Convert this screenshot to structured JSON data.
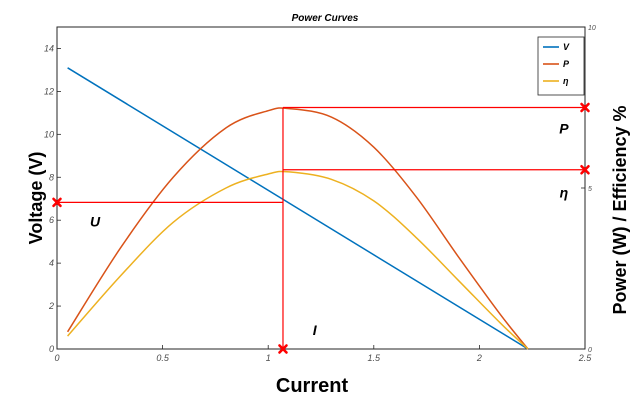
{
  "chart_data": {
    "type": "line",
    "title": "Power Curves",
    "xlabel": "Current",
    "ylabel_left": "Voltage (V)",
    "ylabel_right": "Power (W) / Efficiency %",
    "xlim": [
      0,
      2.5
    ],
    "ylim_left": [
      0,
      15
    ],
    "ylim_right": [
      0,
      10
    ],
    "x_ticks": [
      "0",
      "0.5",
      "1",
      "1.5",
      "2",
      "2.5"
    ],
    "y_ticks_left": [
      "0",
      "2",
      "4",
      "6",
      "8",
      "10",
      "12",
      "14"
    ],
    "y_ticks_right": [
      "0",
      "5",
      "10"
    ],
    "grid": false,
    "legend_position": "top-right",
    "legend": [
      "V",
      "P",
      "η"
    ],
    "series": [
      {
        "name": "V",
        "color": "#0072BD",
        "axis": "left",
        "x": [
          0.05,
          2.23
        ],
        "y": [
          13.1,
          0.0
        ]
      },
      {
        "name": "P",
        "color": "#D95319",
        "axis": "left",
        "x": [
          0.05,
          0.3,
          0.55,
          0.8,
          1.0,
          1.1,
          1.3,
          1.5,
          1.7,
          1.9,
          2.1,
          2.23
        ],
        "y": [
          0.8,
          4.7,
          8.0,
          10.3,
          11.1,
          11.2,
          10.8,
          9.4,
          7.1,
          4.3,
          1.6,
          0.0
        ]
      },
      {
        "name": "η",
        "color": "#EDB120",
        "axis": "left",
        "x": [
          0.05,
          0.3,
          0.55,
          0.8,
          1.0,
          1.1,
          1.3,
          1.5,
          1.7,
          1.9,
          2.1,
          2.23
        ],
        "y": [
          0.6,
          3.4,
          5.9,
          7.5,
          8.15,
          8.25,
          7.9,
          6.9,
          5.2,
          3.2,
          1.2,
          0.0
        ]
      }
    ],
    "markers": {
      "color": "#FF0000",
      "operating_current": 1.07,
      "operating_voltage": 6.83,
      "operating_power": 11.25,
      "operating_efficiency": 8.35
    },
    "annotations": [
      {
        "text": "U",
        "x": 0.18,
        "y": 5.7
      },
      {
        "text": "I",
        "x": 1.22,
        "y": 0.65
      },
      {
        "text": "P",
        "x": 2.4,
        "y": 10.05
      },
      {
        "text": "η",
        "x": 2.4,
        "y": 7.05
      }
    ]
  }
}
